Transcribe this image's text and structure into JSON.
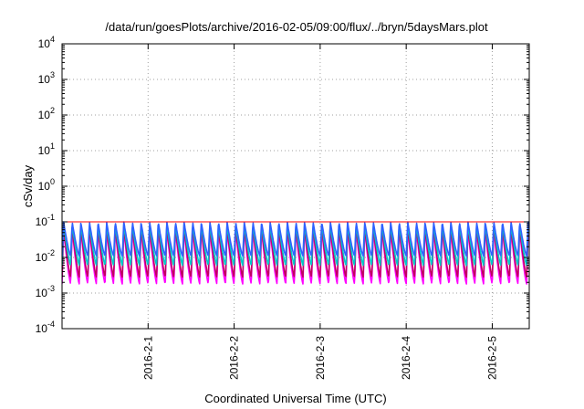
{
  "chart_data": {
    "type": "line",
    "title": "/data/run/goesPlots/archive/2016-02-05/09:00/flux/../bryn/5daysMars.plot",
    "xlabel": "Coordinated Universal Time (UTC)",
    "ylabel": "cSv/day",
    "yscale": "log",
    "ylim": [
      0.0001,
      10000
    ],
    "xlim_days": [
      0,
      5.43
    ],
    "y_ticks": [
      {
        "base": "10",
        "exp": "-4"
      },
      {
        "base": "10",
        "exp": "-3"
      },
      {
        "base": "10",
        "exp": "-2"
      },
      {
        "base": "10",
        "exp": "-1"
      },
      {
        "base": "10",
        "exp": "0"
      },
      {
        "base": "10",
        "exp": "1"
      },
      {
        "base": "10",
        "exp": "2"
      },
      {
        "base": "10",
        "exp": "3"
      },
      {
        "base": "10",
        "exp": "4"
      }
    ],
    "x_ticks": [
      {
        "label": "2016-2-1",
        "day": 1
      },
      {
        "label": "2016-2-2",
        "day": 2
      },
      {
        "label": "2016-2-3",
        "day": 3
      },
      {
        "label": "2016-2-4",
        "day": 4
      },
      {
        "label": "2016-2-5",
        "day": 5
      }
    ],
    "grid": true,
    "reference_line": {
      "value": 0.1,
      "color": "#ff0000"
    },
    "oscillation_period_days": 0.1,
    "series": [
      {
        "color": "#ff00ff",
        "peak": 0.06,
        "trough": 0.0018
      },
      {
        "color": "#c00060",
        "peak": 0.07,
        "trough": 0.0028
      },
      {
        "color": "#00c8c8",
        "peak": 0.085,
        "trough": 0.006
      },
      {
        "color": "#3060ff",
        "peak": 0.1,
        "trough": 0.011
      }
    ]
  }
}
